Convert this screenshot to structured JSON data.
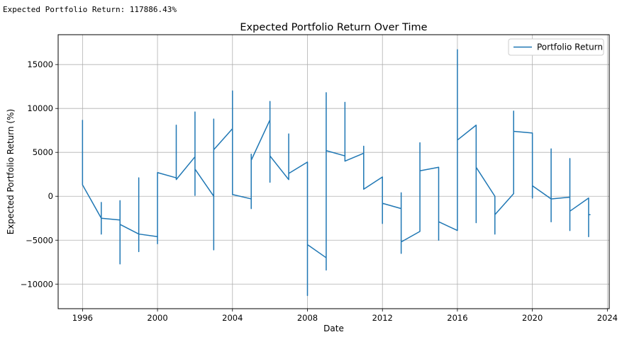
{
  "header": {
    "text": "Expected Portfolio Return: 117886.43%"
  },
  "chart_data": {
    "type": "line",
    "title": "Expected Portfolio Return Over Time",
    "xlabel": "Date",
    "ylabel": "Expected Portfolio Return (%)",
    "xlim": [
      1994.7,
      2024.1
    ],
    "ylim": [
      -12800,
      18400
    ],
    "xticks": [
      1996,
      2000,
      2004,
      2008,
      2012,
      2016,
      2020,
      2024
    ],
    "yticks": [
      -10000,
      -5000,
      0,
      5000,
      10000,
      15000
    ],
    "ytick_labels": [
      "−10000",
      "−5000",
      "0",
      "5000",
      "10000",
      "15000"
    ],
    "grid": true,
    "legend_position": "top-right",
    "color": "#1f77b4",
    "series": [
      {
        "name": "Portfolio Return",
        "segments": [
          {
            "x_start": 1996,
            "x_end": 1997,
            "y_start": 1300,
            "y_end": -2500,
            "spike_min": 3900,
            "spike_max": 8700
          },
          {
            "x_start": 1997,
            "x_end": 1998,
            "y_start": -2500,
            "y_end": -2700,
            "spike_min": -4300,
            "spike_max": -700
          },
          {
            "x_start": 1998,
            "x_end": 1999,
            "y_start": -3200,
            "y_end": -4300,
            "spike_min": -7700,
            "spike_max": -500
          },
          {
            "x_start": 1999,
            "x_end": 2000,
            "y_start": -4300,
            "y_end": -4600,
            "spike_min": -6300,
            "spike_max": 2100
          },
          {
            "x_start": 2000,
            "x_end": 2001,
            "y_start": 2700,
            "y_end": 2100,
            "spike_min": -5400,
            "spike_max": 2700
          },
          {
            "x_start": 2001,
            "x_end": 2002,
            "y_start": 1900,
            "y_end": 4500,
            "spike_min": 1900,
            "spike_max": 8100
          },
          {
            "x_start": 2002,
            "x_end": 2003,
            "y_start": 3100,
            "y_end": 0,
            "spike_min": 100,
            "spike_max": 9600
          },
          {
            "x_start": 2003,
            "x_end": 2004,
            "y_start": 5300,
            "y_end": 7700,
            "spike_min": -6100,
            "spike_max": 8800
          },
          {
            "x_start": 2004,
            "x_end": 2005,
            "y_start": 200,
            "y_end": -300,
            "spike_min": 200,
            "spike_max": 12000
          },
          {
            "x_start": 2005,
            "x_end": 2006,
            "y_start": 4100,
            "y_end": 8700,
            "spike_min": -1400,
            "spike_max": 4800
          },
          {
            "x_start": 2006,
            "x_end": 2007,
            "y_start": 4600,
            "y_end": 1900,
            "spike_min": 1600,
            "spike_max": 10800
          },
          {
            "x_start": 2007,
            "x_end": 2008,
            "y_start": 2600,
            "y_end": 3900,
            "spike_min": 1900,
            "spike_max": 7100
          },
          {
            "x_start": 2008,
            "x_end": 2009,
            "y_start": -5500,
            "y_end": -7000,
            "spike_min": -11300,
            "spike_max": 3900
          },
          {
            "x_start": 2009,
            "x_end": 2010,
            "y_start": 5200,
            "y_end": 4600,
            "spike_min": -8400,
            "spike_max": 11800
          },
          {
            "x_start": 2010,
            "x_end": 2011,
            "y_start": 4000,
            "y_end": 4900,
            "spike_min": 4000,
            "spike_max": 10700
          },
          {
            "x_start": 2011,
            "x_end": 2012,
            "y_start": 800,
            "y_end": 2200,
            "spike_min": 800,
            "spike_max": 5700
          },
          {
            "x_start": 2012,
            "x_end": 2013,
            "y_start": -800,
            "y_end": -1400,
            "spike_min": -3100,
            "spike_max": 2200
          },
          {
            "x_start": 2013,
            "x_end": 2014,
            "y_start": -5200,
            "y_end": -4000,
            "spike_min": -6500,
            "spike_max": 400
          },
          {
            "x_start": 2014,
            "x_end": 2015,
            "y_start": 2900,
            "y_end": 3300,
            "spike_min": -4000,
            "spike_max": 6100
          },
          {
            "x_start": 2015,
            "x_end": 2016,
            "y_start": -2900,
            "y_end": -3900,
            "spike_min": -5000,
            "spike_max": 3300
          },
          {
            "x_start": 2016,
            "x_end": 2017,
            "y_start": 6400,
            "y_end": 8100,
            "spike_min": -3900,
            "spike_max": 16700
          },
          {
            "x_start": 2017,
            "x_end": 2018,
            "y_start": 3300,
            "y_end": 0,
            "spike_min": -3000,
            "spike_max": 8100
          },
          {
            "x_start": 2018,
            "x_end": 2019,
            "y_start": -2100,
            "y_end": 300,
            "spike_min": -4300,
            "spike_max": 0
          },
          {
            "x_start": 2019,
            "x_end": 2020,
            "y_start": 7400,
            "y_end": 7200,
            "spike_min": 300,
            "spike_max": 9700
          },
          {
            "x_start": 2020,
            "x_end": 2021,
            "y_start": 1200,
            "y_end": -300,
            "spike_min": -200,
            "spike_max": 7200
          },
          {
            "x_start": 2021,
            "x_end": 2022,
            "y_start": -300,
            "y_end": -100,
            "spike_min": -2900,
            "spike_max": 5400
          },
          {
            "x_start": 2022,
            "x_end": 2023,
            "y_start": -1700,
            "y_end": -200,
            "spike_min": -3900,
            "spike_max": 4300
          },
          {
            "x_start": 2023,
            "x_end": 2023.1,
            "y_start": -2100,
            "y_end": -2100,
            "spike_min": -4600,
            "spike_max": -200
          }
        ]
      }
    ]
  }
}
